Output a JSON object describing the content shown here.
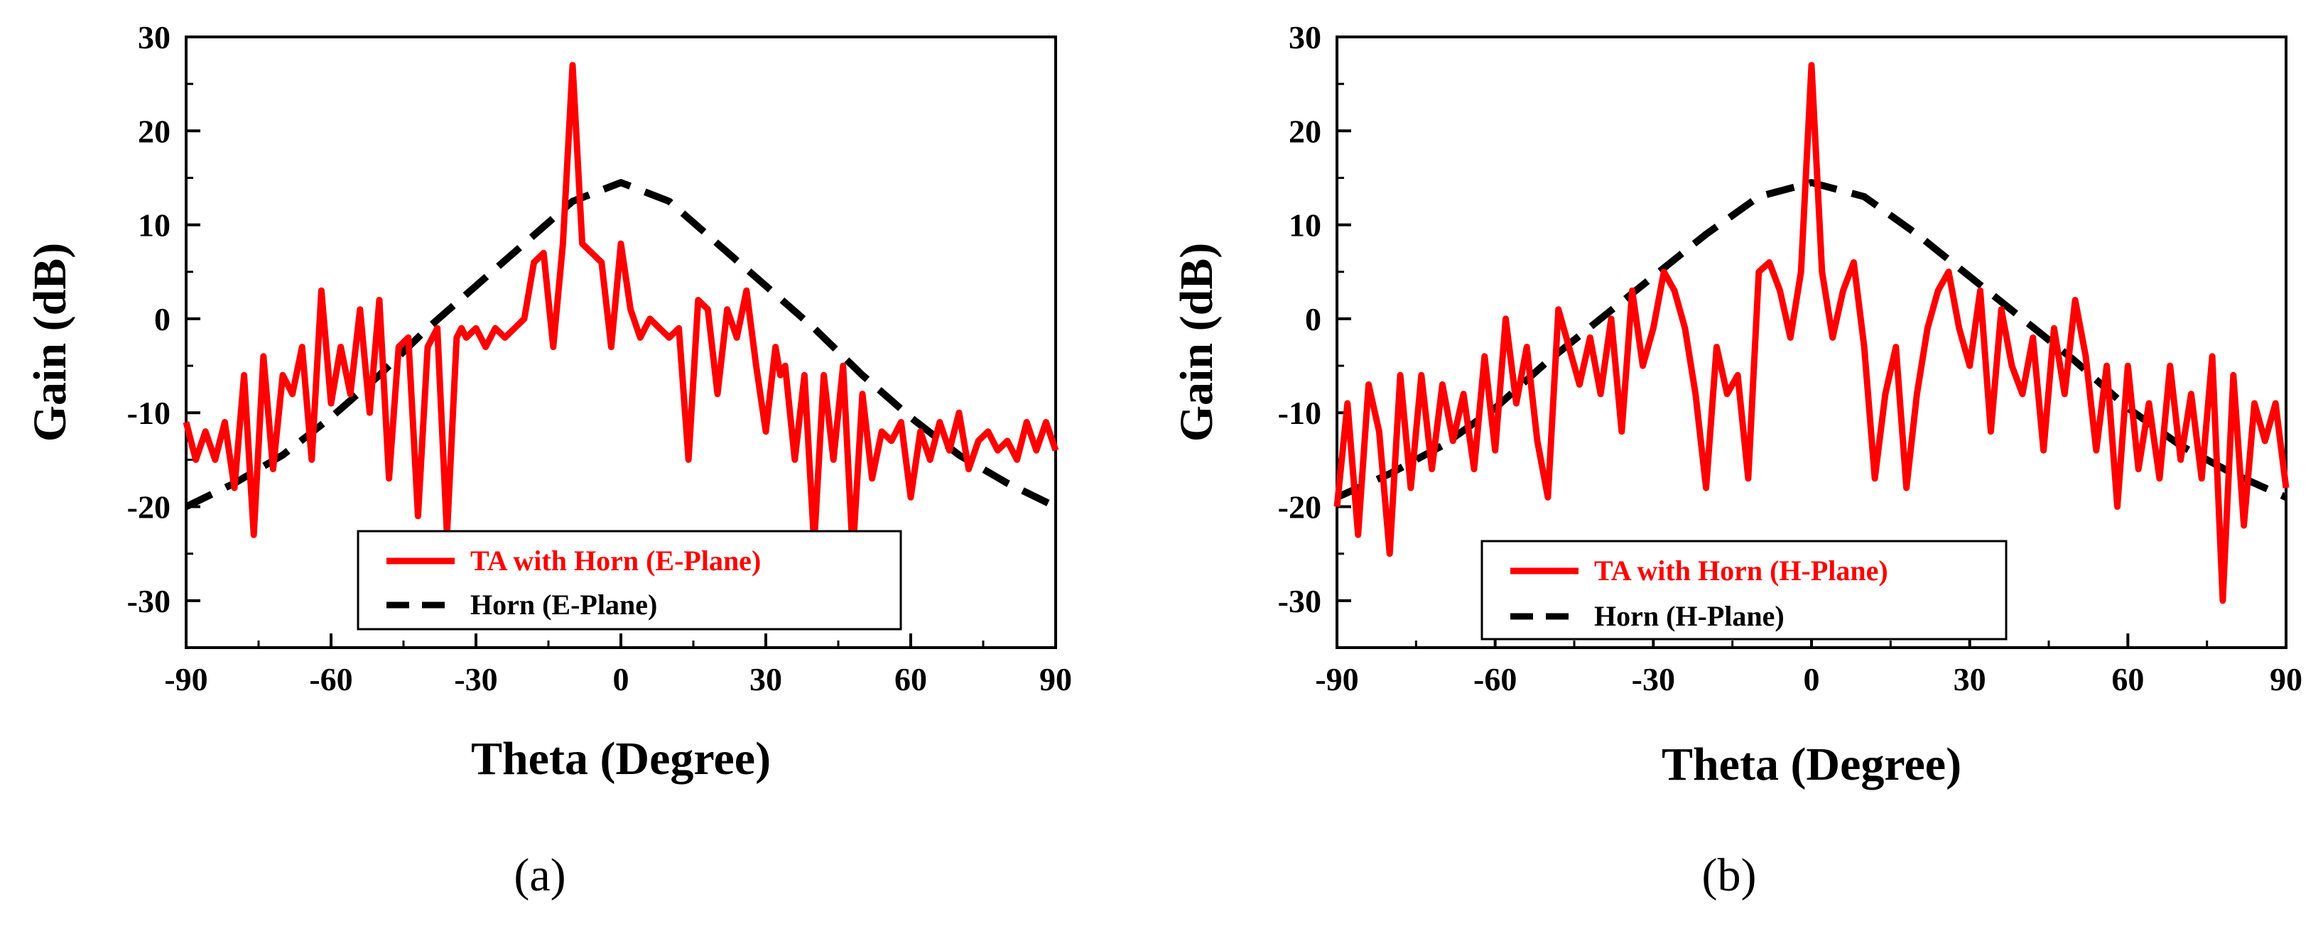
{
  "chart_data": [
    {
      "type": "line",
      "panel_label": "(a)",
      "xlabel": "Theta (Degree)",
      "ylabel": "Gain (dB)",
      "xlim": [
        -90,
        90
      ],
      "ylim": [
        -35,
        30
      ],
      "xticks": [
        -90,
        -60,
        -30,
        0,
        30,
        60,
        90
      ],
      "yticks": [
        -30,
        -20,
        -10,
        0,
        10,
        20,
        30
      ],
      "legend_position": "bottom-center",
      "series": [
        {
          "name": "TA with Horn (E-Plane)",
          "color": "#ff0000",
          "style": "solid",
          "x": [
            -90,
            -88,
            -86,
            -84,
            -82,
            -80,
            -78,
            -76,
            -74,
            -72,
            -70,
            -68,
            -66,
            -64,
            -62,
            -60,
            -58,
            -56,
            -54,
            -52,
            -50,
            -48,
            -46,
            -44,
            -42,
            -40,
            -38,
            -36,
            -34,
            -33,
            -32,
            -30,
            -28,
            -26,
            -24,
            -22,
            -20,
            -18,
            -16,
            -14,
            -12,
            -10,
            -8,
            -6,
            -4,
            -2,
            0,
            2,
            4,
            6,
            8,
            10,
            12,
            14,
            16,
            18,
            20,
            22,
            24,
            26,
            28,
            30,
            32,
            33,
            34,
            36,
            38,
            40,
            42,
            44,
            46,
            48,
            50,
            52,
            54,
            56,
            58,
            60,
            62,
            64,
            66,
            68,
            70,
            72,
            74,
            76,
            78,
            80,
            82,
            84,
            86,
            88,
            90
          ],
          "values": [
            -11,
            -15,
            -12,
            -15,
            -11,
            -18,
            -6,
            -23,
            -4,
            -16,
            -6,
            -8,
            -3,
            -15,
            3,
            -9,
            -3,
            -8,
            1,
            -10,
            2,
            -17,
            -3,
            -2,
            -21,
            -3,
            -1,
            -23,
            -2,
            -1,
            -2,
            -1,
            -3,
            -1,
            -2,
            -1,
            0,
            6,
            7,
            -3,
            8,
            27,
            8,
            7,
            6,
            -3,
            8,
            1,
            -2,
            0,
            -1,
            -2,
            -1,
            -15,
            2,
            1,
            -8,
            1,
            -2,
            3,
            -5,
            -12,
            -3,
            -6,
            -5,
            -15,
            -6,
            -24,
            -6,
            -15,
            -5,
            -25,
            -8,
            -17,
            -12,
            -13,
            -11,
            -19,
            -12,
            -15,
            -11,
            -14,
            -10,
            -16,
            -13,
            -12,
            -14,
            -13,
            -15,
            -11,
            -14,
            -11,
            -14
          ],
          "x_dense_note": "approximate trace read from figure"
        },
        {
          "name": "Horn (E-Plane)",
          "color": "#000000",
          "style": "dashed",
          "x": [
            -90,
            -80,
            -70,
            -60,
            -50,
            -40,
            -30,
            -20,
            -10,
            0,
            10,
            20,
            30,
            40,
            50,
            60,
            70,
            80,
            90
          ],
          "values": [
            -20,
            -17.5,
            -14.5,
            -10.5,
            -6,
            -1,
            3.5,
            8,
            12.5,
            14.5,
            12.5,
            8,
            3.5,
            -1,
            -6,
            -10.5,
            -14.5,
            -17.5,
            -20
          ]
        }
      ]
    },
    {
      "type": "line",
      "panel_label": "(b)",
      "xlabel": "Theta (Degree)",
      "ylabel": "Gain (dB)",
      "xlim": [
        -90,
        90
      ],
      "ylim": [
        -35,
        30
      ],
      "xticks": [
        -90,
        -60,
        -30,
        0,
        30,
        60,
        90
      ],
      "yticks": [
        -30,
        -20,
        -10,
        0,
        10,
        20,
        30
      ],
      "legend_position": "bottom-center",
      "series": [
        {
          "name": "TA with Horn (H-Plane)",
          "color": "#ff0000",
          "style": "solid",
          "x": [
            -90,
            -88,
            -86,
            -84,
            -82,
            -80,
            -78,
            -76,
            -74,
            -72,
            -70,
            -68,
            -66,
            -64,
            -62,
            -60,
            -58,
            -56,
            -54,
            -52,
            -50,
            -48,
            -46,
            -44,
            -42,
            -40,
            -38,
            -36,
            -34,
            -32,
            -30,
            -28,
            -26,
            -24,
            -22,
            -20,
            -18,
            -16,
            -14,
            -12,
            -10,
            -8,
            -6,
            -4,
            -2,
            0,
            2,
            4,
            6,
            8,
            10,
            12,
            14,
            16,
            18,
            20,
            22,
            24,
            26,
            28,
            30,
            32,
            34,
            36,
            38,
            40,
            42,
            44,
            46,
            48,
            50,
            52,
            54,
            56,
            58,
            60,
            62,
            64,
            66,
            68,
            70,
            72,
            74,
            76,
            78,
            80,
            82,
            84,
            86,
            88,
            90
          ],
          "values": [
            -20,
            -9,
            -23,
            -7,
            -12,
            -25,
            -6,
            -18,
            -6,
            -16,
            -7,
            -13,
            -8,
            -16,
            -4,
            -14,
            0,
            -9,
            -3,
            -13,
            -19,
            1,
            -3,
            -7,
            -2,
            -8,
            0,
            -12,
            3,
            -5,
            -1,
            5,
            3,
            -1,
            -8,
            -18,
            -3,
            -8,
            -6,
            -17,
            5,
            6,
            3,
            -2,
            5,
            27,
            5,
            -2,
            3,
            6,
            -3,
            -17,
            -8,
            -3,
            -18,
            -8,
            -1,
            3,
            5,
            -1,
            -5,
            3,
            -12,
            1,
            -5,
            -8,
            -2,
            -14,
            -1,
            -8,
            2,
            -4,
            -14,
            -5,
            -20,
            -5,
            -16,
            -9,
            -17,
            -5,
            -15,
            -8,
            -17,
            -4,
            -30,
            -6,
            -22,
            -9,
            -13,
            -9,
            -18
          ]
        },
        {
          "name": "Horn (H-Plane)",
          "color": "#000000",
          "style": "dashed",
          "x": [
            -90,
            -80,
            -70,
            -60,
            -50,
            -40,
            -30,
            -20,
            -10,
            0,
            10,
            20,
            30,
            40,
            50,
            60,
            70,
            80,
            90
          ],
          "values": [
            -19,
            -16.5,
            -13.5,
            -9.5,
            -4.5,
            0,
            4.5,
            9,
            13,
            14.5,
            13,
            9,
            4.5,
            0,
            -4.5,
            -9.5,
            -13.5,
            -16.5,
            -19
          ]
        }
      ]
    }
  ]
}
